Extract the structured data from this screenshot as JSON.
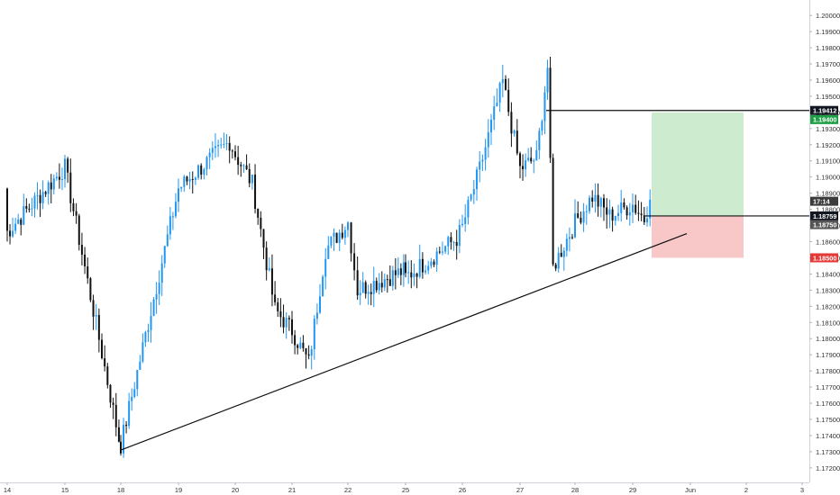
{
  "chart_data": {
    "type": "candlestick",
    "title": "",
    "xlabel": "",
    "ylabel": "",
    "ylim": [
      1.1711,
      1.2009
    ],
    "price_ticks": [
      "1.20000",
      "1.19900",
      "1.19800",
      "1.19700",
      "1.19600",
      "1.19500",
      "1.19400",
      "1.19300",
      "1.19200",
      "1.19100",
      "1.19000",
      "1.18900",
      "1.18800",
      "1.18700",
      "1.18600",
      "1.18500",
      "1.18400",
      "1.18300",
      "1.18200",
      "1.18100",
      "1.18000",
      "1.17900",
      "1.17800",
      "1.17700",
      "1.17600",
      "1.17500",
      "1.17400",
      "1.17300",
      "1.17200"
    ],
    "date_ticks": [
      "14",
      "15",
      "18",
      "19",
      "20",
      "21",
      "22",
      "25",
      "26",
      "27",
      "28",
      "29",
      "Jun",
      "2",
      "3"
    ],
    "series_colors": {
      "up": "#2196f3",
      "down": "#111111"
    },
    "key_points": [
      {
        "date": "14",
        "price": 1.1893
      },
      {
        "date": "14",
        "price": 1.1866
      },
      {
        "date": "15",
        "price": 1.1906
      },
      {
        "date": "17.9",
        "price": 1.1738
      },
      {
        "date": "18",
        "price": 1.1734
      },
      {
        "date": "19",
        "price": 1.1893
      },
      {
        "date": "19.9",
        "price": 1.1922
      },
      {
        "date": "20",
        "price": 1.1914
      },
      {
        "date": "20.3",
        "price": 1.1896
      },
      {
        "date": "20.7",
        "price": 1.1818
      },
      {
        "date": "21",
        "price": 1.1805
      },
      {
        "date": "21.3",
        "price": 1.1785
      },
      {
        "date": "21.6",
        "price": 1.1855
      },
      {
        "date": "22",
        "price": 1.1872
      },
      {
        "date": "22.5",
        "price": 1.183
      },
      {
        "date": "24.9",
        "price": 1.1842
      },
      {
        "date": "25",
        "price": 1.1838
      },
      {
        "date": "25.9",
        "price": 1.1862
      },
      {
        "date": "26",
        "price": 1.1869
      },
      {
        "date": "26.3",
        "price": 1.1905
      },
      {
        "date": "26.7",
        "price": 1.1959
      },
      {
        "date": "27",
        "price": 1.1905
      },
      {
        "date": "27.3",
        "price": 1.1912
      },
      {
        "date": "27.5",
        "price": 1.1968
      },
      {
        "date": "27.6",
        "price": 1.1844
      },
      {
        "date": "28",
        "price": 1.1872
      },
      {
        "date": "28.3",
        "price": 1.1888
      },
      {
        "date": "28.6",
        "price": 1.1876
      },
      {
        "date": "29",
        "price": 1.1883
      },
      {
        "date": "29.2",
        "price": 1.1874
      },
      {
        "date": "29.3",
        "price": 1.1886
      }
    ],
    "trendline": {
      "from": {
        "date": "18",
        "price": 1.1731
      },
      "to": {
        "date": "Jun",
        "price": 1.1865
      }
    },
    "horizontal_lines": [
      {
        "price": 1.19412,
        "label": "1.19412"
      },
      {
        "price": 1.18759,
        "label": "1.18759"
      }
    ],
    "position": {
      "entry": 1.18759,
      "take_profit": 1.194,
      "stop_loss": 1.185,
      "profit_color": "#cdebcf",
      "loss_color": "#f8c7c7"
    },
    "price_labels": [
      {
        "text": "1.19412",
        "price": 1.19412,
        "bg": "#131722",
        "fg": "#ffffff"
      },
      {
        "text": "1.19400",
        "price": 1.194,
        "bg": "#1e9e45",
        "fg": "#ffffff"
      },
      {
        "text": "17:14",
        "price": 1.1885,
        "bg": "#3c3c3c",
        "fg": "#ffffff"
      },
      {
        "text": "1.18759",
        "price": 1.18759,
        "bg": "#131722",
        "fg": "#ffffff"
      },
      {
        "text": "1.18750",
        "price": 1.1875,
        "bg": "#555555",
        "fg": "#ffffff"
      },
      {
        "text": "1.18500",
        "price": 1.185,
        "bg": "#e53935",
        "fg": "#ffffff"
      }
    ],
    "grid": false,
    "legend": "none"
  }
}
